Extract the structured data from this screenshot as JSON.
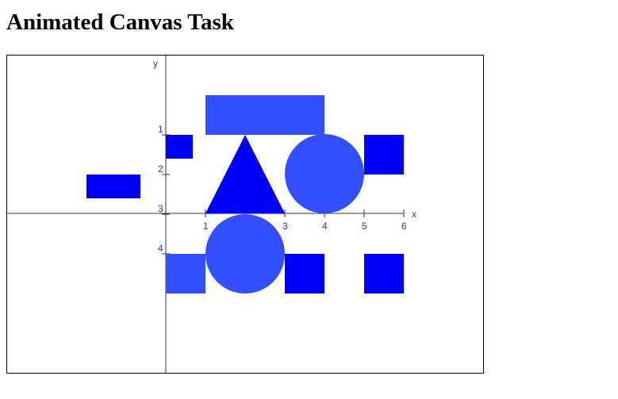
{
  "page": {
    "title": "Animated Canvas Task"
  },
  "colors": {
    "axis_line": "#333333",
    "axis_label": "#3333cc",
    "shape_dark": "#0000ff",
    "shape_light": "#3250ff"
  },
  "canvas": {
    "x_axis": {
      "label": "x",
      "ticks": [
        "1",
        "2",
        "3",
        "4",
        "5",
        "6"
      ]
    },
    "y_axis": {
      "label": "y",
      "ticks": [
        "1",
        "2",
        "3",
        "4"
      ]
    },
    "shapes": [
      {
        "kind": "rectangle",
        "color": "light",
        "name": "wide-rectangle"
      },
      {
        "kind": "square",
        "color": "dark",
        "name": "small-square-top-left"
      },
      {
        "kind": "triangle",
        "color": "dark",
        "name": "triangle"
      },
      {
        "kind": "circle",
        "color": "light",
        "name": "circle-upper-right"
      },
      {
        "kind": "square",
        "color": "dark",
        "name": "square-upper-right"
      },
      {
        "kind": "rectangle",
        "color": "dark",
        "name": "rectangle-left"
      },
      {
        "kind": "square",
        "color": "light",
        "name": "square-lower-left"
      },
      {
        "kind": "circle",
        "color": "light",
        "name": "circle-lower"
      },
      {
        "kind": "square",
        "color": "dark",
        "name": "square-lower-middle"
      },
      {
        "kind": "square",
        "color": "dark",
        "name": "square-lower-right"
      }
    ]
  }
}
